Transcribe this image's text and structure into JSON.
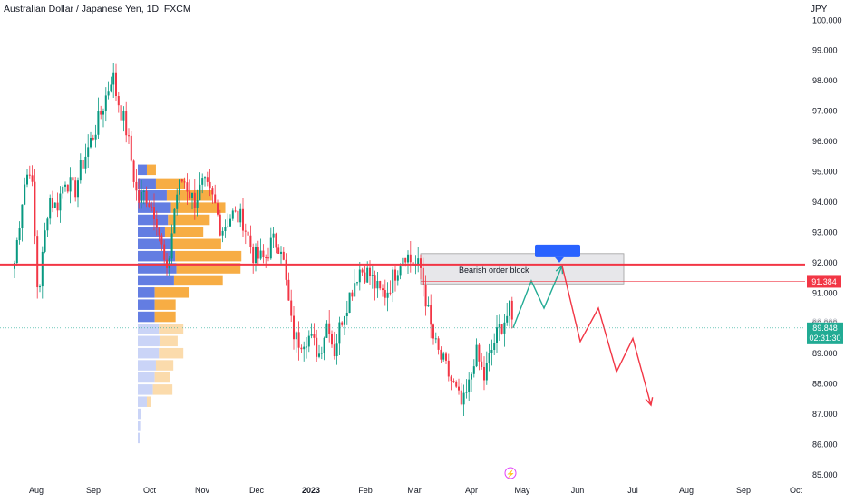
{
  "header": {
    "symbol_title": "Australian Dollar / Japanese Yen, 1D, FXCM",
    "currency": "JPY"
  },
  "labels": {
    "order_block": "Bearish order block",
    "line_price": "91.384",
    "last_price": "89.848",
    "countdown": "02:31:30",
    "current_price_peek": "90.000"
  },
  "colors": {
    "up": "#089981",
    "down": "#f23645",
    "vp_blue": "#5b76e0",
    "vp_orange": "#f7a93a",
    "vp_blue_light": "#c7d2f7",
    "vp_orange_light": "#fbd9a8",
    "resistance": "#f23645",
    "projection_green": "#22ab94",
    "projection_red": "#f23645",
    "marker_blue": "#2962ff"
  },
  "icons": {
    "flash": "lightning-icon"
  },
  "chart_data": {
    "type": "candlestick",
    "title": "Australian Dollar / Japanese Yen, 1D, FXCM",
    "ylabel": "JPY",
    "y_ticks": [
      "85.000",
      "86.000",
      "87.000",
      "88.000",
      "89.000",
      "90.000",
      "91.000",
      "92.000",
      "93.000",
      "94.000",
      "95.000",
      "96.000",
      "97.000",
      "98.000",
      "99.000",
      "100.000"
    ],
    "ylim": [
      85,
      100.5
    ],
    "x_ticks": [
      "Aug",
      "Sep",
      "Oct",
      "Nov",
      "Dec",
      "2023",
      "Feb",
      "Mar",
      "Apr",
      "May",
      "Jun",
      "Jul",
      "Aug",
      "Sep",
      "Oct"
    ],
    "grid": false,
    "close_path": [
      [
        "2022-07-20",
        92.0
      ],
      [
        "2022-07-25",
        94.5
      ],
      [
        "2022-07-29",
        95.3
      ],
      [
        "2022-08-02",
        90.8
      ],
      [
        "2022-08-08",
        94.2
      ],
      [
        "2022-08-12",
        93.8
      ],
      [
        "2022-08-17",
        94.8
      ],
      [
        "2022-08-22",
        94.3
      ],
      [
        "2022-08-26",
        95.2
      ],
      [
        "2022-08-31",
        96.0
      ],
      [
        "2022-09-05",
        96.8
      ],
      [
        "2022-09-09",
        97.6
      ],
      [
        "2022-09-12",
        98.3
      ],
      [
        "2022-09-14",
        97.6
      ],
      [
        "2022-09-20",
        96.3
      ],
      [
        "2022-09-26",
        94.0
      ],
      [
        "2022-09-30",
        94.3
      ],
      [
        "2022-10-06",
        93.6
      ],
      [
        "2022-10-12",
        91.5
      ],
      [
        "2022-10-17",
        94.2
      ],
      [
        "2022-10-21",
        94.8
      ],
      [
        "2022-10-27",
        94.0
      ],
      [
        "2022-11-01",
        94.6
      ],
      [
        "2022-11-07",
        94.0
      ],
      [
        "2022-11-11",
        93.1
      ],
      [
        "2022-11-17",
        93.6
      ],
      [
        "2022-11-23",
        93.4
      ],
      [
        "2022-11-29",
        92.2
      ],
      [
        "2022-12-05",
        92.1
      ],
      [
        "2022-12-09",
        92.7
      ],
      [
        "2022-12-14",
        92.6
      ],
      [
        "2022-12-20",
        89.8
      ],
      [
        "2022-12-23",
        89.4
      ],
      [
        "2022-12-29",
        89.6
      ],
      [
        "2023-01-04",
        89.0
      ],
      [
        "2023-01-09",
        90.2
      ],
      [
        "2023-01-12",
        89.0
      ],
      [
        "2023-01-17",
        90.3
      ],
      [
        "2023-01-23",
        91.3
      ],
      [
        "2023-01-26",
        91.8
      ],
      [
        "2023-02-01",
        91.6
      ],
      [
        "2023-02-06",
        91.0
      ],
      [
        "2023-02-10",
        91.0
      ],
      [
        "2023-02-15",
        91.7
      ],
      [
        "2023-02-20",
        92.4
      ],
      [
        "2023-02-24",
        92.0
      ],
      [
        "2023-03-01",
        91.8
      ],
      [
        "2023-03-07",
        89.7
      ],
      [
        "2023-03-10",
        89.1
      ],
      [
        "2023-03-15",
        88.5
      ],
      [
        "2023-03-20",
        87.8
      ],
      [
        "2023-03-24",
        87.2
      ],
      [
        "2023-03-28",
        88.0
      ],
      [
        "2023-03-31",
        89.1
      ],
      [
        "2023-04-05",
        88.2
      ],
      [
        "2023-04-10",
        89.3
      ],
      [
        "2023-04-14",
        89.9
      ],
      [
        "2023-04-19",
        90.4
      ],
      [
        "2023-04-21",
        89.85
      ]
    ],
    "volume_profile": [
      {
        "price": 95.05,
        "up": 0.15,
        "down": 0.13,
        "faded": false
      },
      {
        "price": 94.6,
        "up": 0.3,
        "down": 0.42,
        "faded": false
      },
      {
        "price": 94.2,
        "up": 0.48,
        "down": 0.65,
        "faded": false
      },
      {
        "price": 93.8,
        "up": 0.55,
        "down": 0.78,
        "faded": false
      },
      {
        "price": 93.4,
        "up": 0.5,
        "down": 0.6,
        "faded": false
      },
      {
        "price": 93.0,
        "up": 0.45,
        "down": 0.55,
        "faded": false
      },
      {
        "price": 92.6,
        "up": 0.55,
        "down": 0.72,
        "faded": false
      },
      {
        "price": 92.2,
        "up": 0.62,
        "down": 0.95,
        "faded": false
      },
      {
        "price": 91.8,
        "up": 0.64,
        "down": 0.92,
        "faded": false
      },
      {
        "price": 91.4,
        "up": 0.6,
        "down": 0.7,
        "faded": false
      },
      {
        "price": 91.0,
        "up": 0.28,
        "down": 0.5,
        "faded": false
      },
      {
        "price": 90.6,
        "up": 0.28,
        "down": 0.3,
        "faded": false
      },
      {
        "price": 90.2,
        "up": 0.28,
        "down": 0.3,
        "faded": false
      },
      {
        "price": 89.8,
        "up": 0.35,
        "down": 0.35,
        "faded": true
      },
      {
        "price": 89.4,
        "up": 0.36,
        "down": 0.26,
        "faded": true
      },
      {
        "price": 89.0,
        "up": 0.35,
        "down": 0.35,
        "faded": true
      },
      {
        "price": 88.6,
        "up": 0.3,
        "down": 0.25,
        "faded": true
      },
      {
        "price": 88.2,
        "up": 0.28,
        "down": 0.22,
        "faded": true
      },
      {
        "price": 87.8,
        "up": 0.25,
        "down": 0.28,
        "faded": true
      },
      {
        "price": 87.4,
        "up": 0.15,
        "down": 0.06,
        "faded": true
      },
      {
        "price": 87.0,
        "up": 0.06,
        "down": 0.0,
        "faded": true
      },
      {
        "price": 86.6,
        "up": 0.04,
        "down": 0.0,
        "faded": true
      },
      {
        "price": 86.2,
        "up": 0.03,
        "down": 0.0,
        "faded": true
      }
    ],
    "resistance_level": 91.94,
    "thin_line_level": 91.384,
    "last_price_level": 89.848,
    "order_block": {
      "start": "2023-03-01",
      "end": "2023-06-21",
      "top": 92.3,
      "bottom": 91.3
    },
    "green_projection": [
      [
        "2023-04-21",
        89.85
      ],
      [
        "2023-05-01",
        91.4
      ],
      [
        "2023-05-08",
        90.5
      ],
      [
        "2023-05-18",
        91.9
      ]
    ],
    "red_projection": [
      [
        "2023-05-18",
        91.9
      ],
      [
        "2023-05-28",
        89.4
      ],
      [
        "2023-06-07",
        90.5
      ],
      [
        "2023-06-17",
        88.4
      ],
      [
        "2023-06-26",
        89.5
      ],
      [
        "2023-07-06",
        87.3
      ]
    ]
  }
}
